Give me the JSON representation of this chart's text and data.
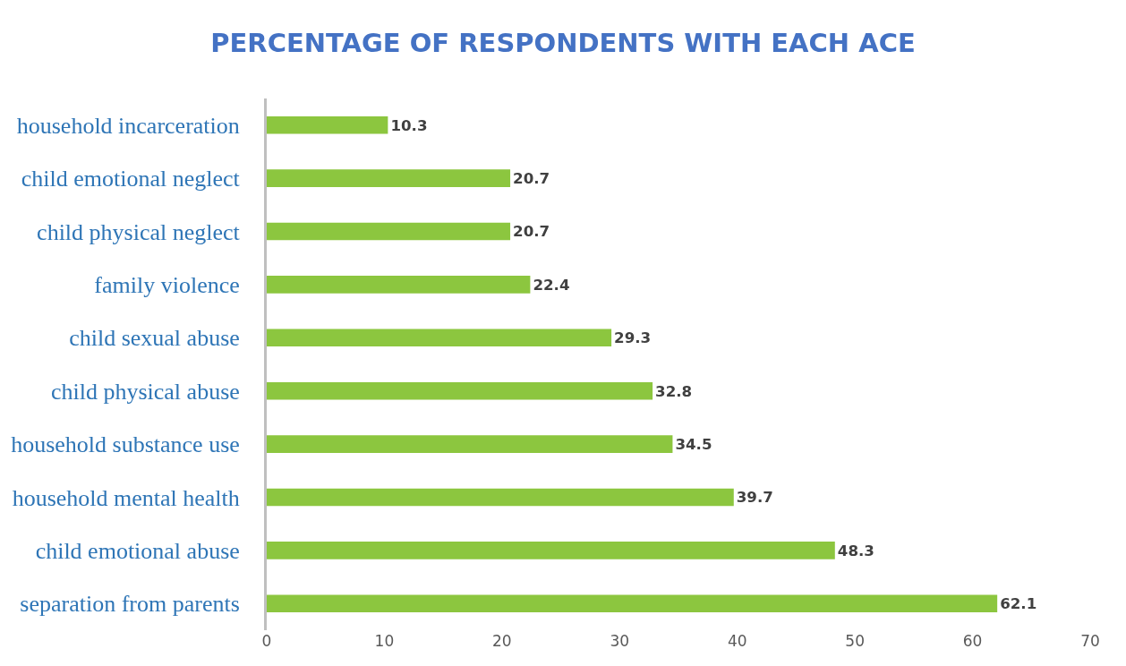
{
  "chart_data": {
    "type": "bar",
    "orientation": "horizontal",
    "title": "PERCENTAGE OF RESPONDENTS WITH EACH ACE",
    "categories": [
      "household incarceration",
      "child emotional neglect",
      "child physical neglect",
      "family violence",
      "child sexual abuse",
      "child physical abuse",
      "household substance use",
      "household mental health",
      "child emotional abuse",
      "separation from parents"
    ],
    "values": [
      10.3,
      20.7,
      20.7,
      22.4,
      29.3,
      32.8,
      34.5,
      39.7,
      48.3,
      62.1
    ],
    "color": "#8cc63f",
    "xlim": [
      0,
      70
    ],
    "xticks": [
      0,
      10,
      20,
      30,
      40,
      50,
      60,
      70
    ],
    "grid": false,
    "data_labels": true
  }
}
